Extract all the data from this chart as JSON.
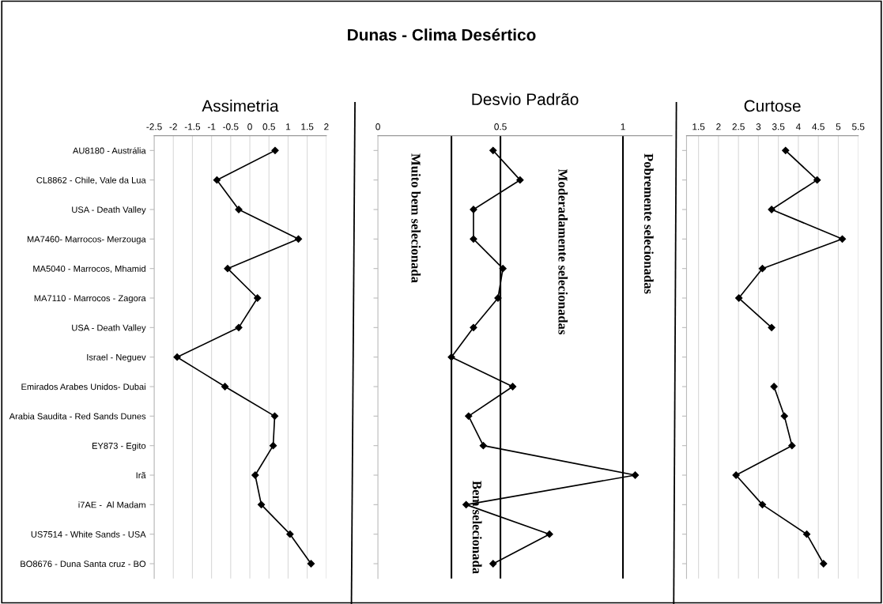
{
  "chart_data": [
    {
      "type": "other",
      "title": "Dunas - Clima Desértico"
    },
    {
      "type": "line",
      "orientation": "horizontal",
      "title": "Assimetria",
      "categories": [
        "AU8180 - Austrália",
        "CL8862 - Chile, Vale da Lua",
        "USA - Death Valley",
        "MA7460- Marrocos- Merzouga",
        "MA5040 - Marrocos, Mhamid",
        "MA7110 - Marrocos - Zagora",
        "USA - Death Valley",
        "Israel - Neguev",
        "Emirados Arabes Unidos- Dubai",
        "Arabia Saudita - Red Sands Dunes",
        "EY873 - Egito",
        "Irã",
        "i7AE -  Al Madam",
        "US7514 - White Sands - USA",
        "BO8676 - Duna Santa cruz - BO"
      ],
      "series": [
        {
          "color": "#000000",
          "values": [
            0.66,
            -0.86,
            -0.29,
            1.27,
            -0.58,
            0.2,
            -0.29,
            -1.9,
            -0.65,
            0.65,
            0.61,
            0.14,
            0.3,
            1.05,
            1.6
          ]
        }
      ],
      "xlim": [
        -2.5,
        2
      ],
      "xticks": [
        -2.5,
        -2,
        -1.5,
        -1,
        -0.5,
        0,
        0.5,
        1,
        1.5,
        2
      ],
      "grid": "x",
      "marker": "diamond",
      "line_style": "solid"
    },
    {
      "type": "line",
      "orientation": "horizontal",
      "title": "Desvio Padrão",
      "categories": [
        null,
        null,
        null,
        null,
        null,
        null,
        null,
        null,
        null,
        null,
        null,
        null,
        null,
        null,
        null
      ],
      "series": [
        {
          "color": "#000000",
          "values": [
            0.47,
            0.58,
            0.39,
            0.39,
            0.51,
            0.49,
            0.39,
            0.3,
            0.55,
            0.37,
            0.43,
            1.05,
            0.36,
            0.7,
            0.47
          ]
        }
      ],
      "xlim": [
        0,
        1.2
      ],
      "xticks": [
        0,
        0.5,
        1
      ],
      "tick_labels": "x",
      "marker": "diamond",
      "line_style": "solid",
      "ref_lines": [
        {
          "axis": "x",
          "value": 0.3,
          "color": "#000000"
        },
        {
          "axis": "x",
          "value": 0.5,
          "color": "#000000"
        },
        {
          "axis": "x",
          "value": 1,
          "color": "#000000"
        }
      ],
      "annotations": [
        "Muito bem selecionada",
        "Bem selecionada",
        "Moderadamente selecionadas",
        "Pobremente selecionadas"
      ]
    },
    {
      "type": "line",
      "orientation": "horizontal",
      "title": "Curtose",
      "categories": [
        null,
        null,
        null,
        null,
        null,
        null,
        null,
        null,
        null,
        null,
        null,
        null,
        null,
        null,
        null
      ],
      "series": [
        {
          "color": "#000000",
          "values": [
            3.68,
            4.47,
            3.33,
            5.1,
            3.1,
            2.51,
            3.33,
            null,
            3.39,
            3.65,
            3.84,
            2.44,
            3.1,
            4.21,
            4.63
          ]
        }
      ],
      "xlim": [
        1.2,
        5.5
      ],
      "xticks": [
        1.5,
        2,
        2.5,
        3,
        3.5,
        4,
        4.5,
        5,
        5.5
      ],
      "tick_labels": "x",
      "grid": "x",
      "marker": "diamond",
      "line_style": "solid"
    }
  ]
}
